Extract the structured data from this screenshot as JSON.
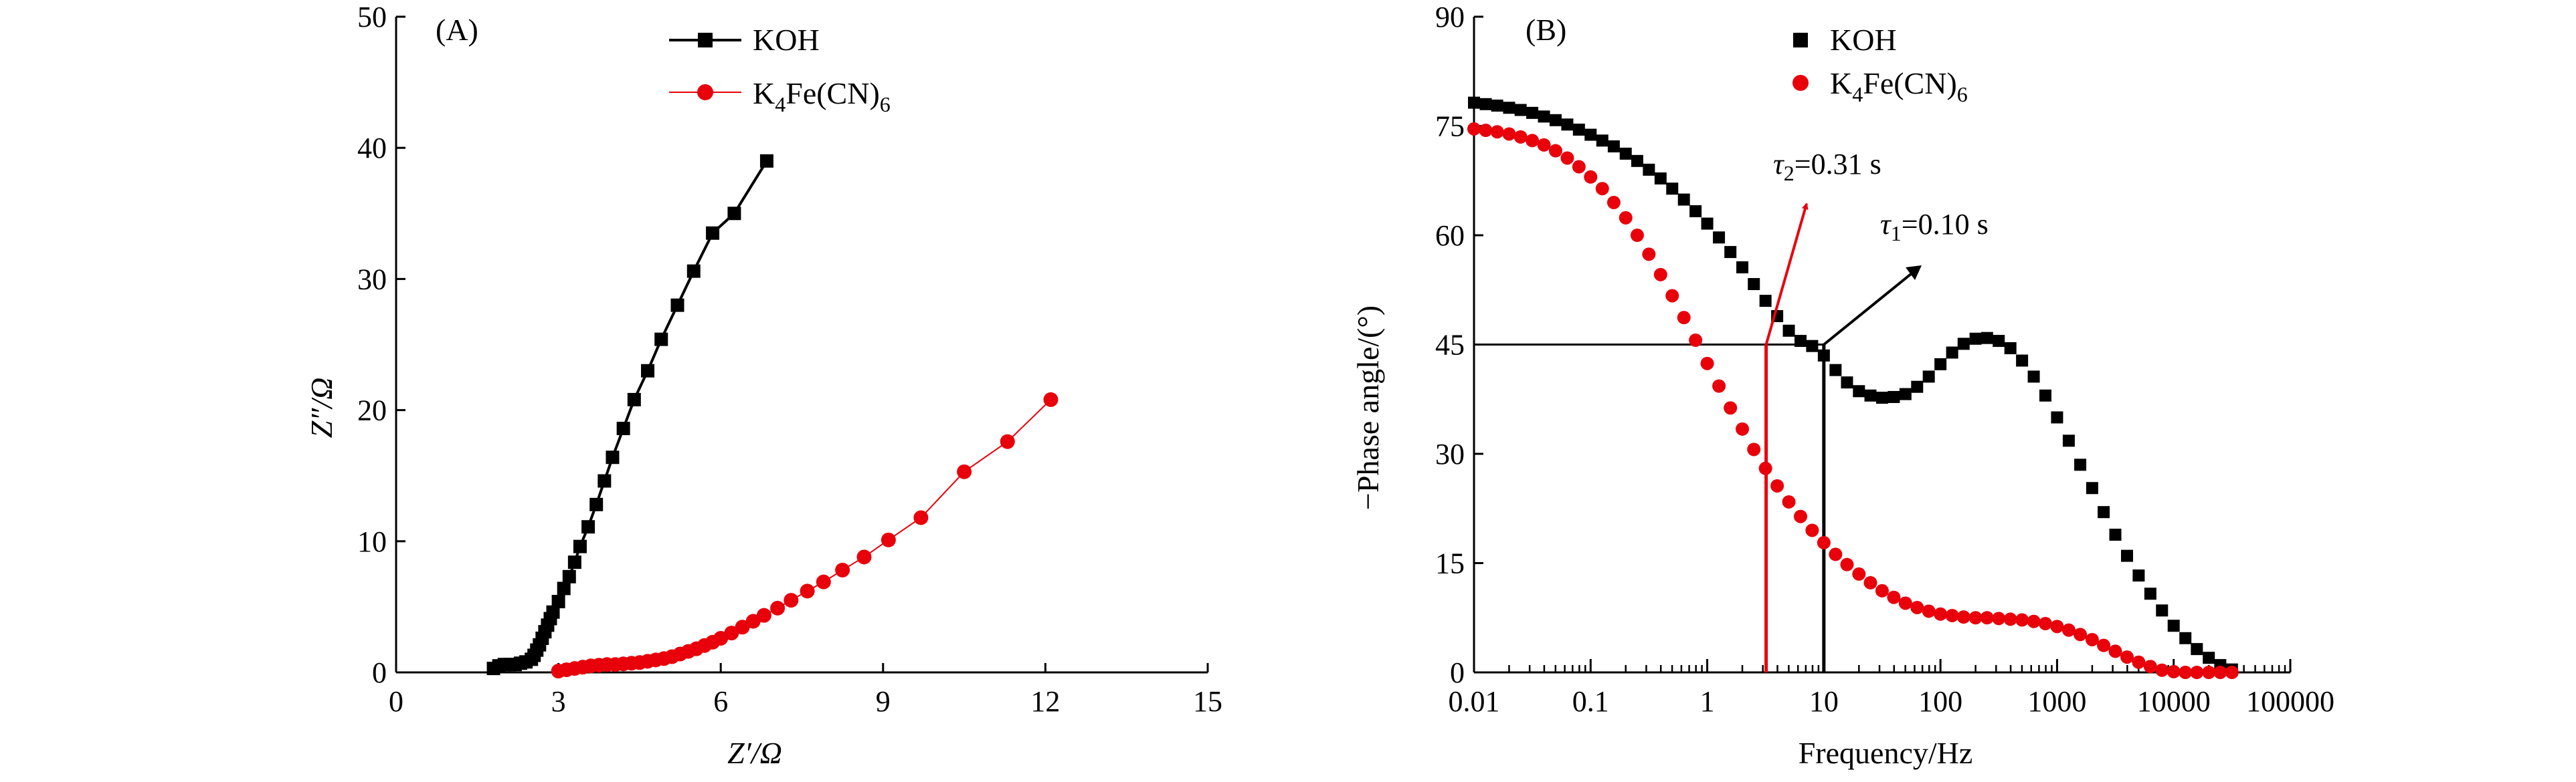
{
  "colors": {
    "koh": "#000000",
    "k4fecn6": "#e8000b",
    "axis": "#000000",
    "background": "#ffffff"
  },
  "chart_data": [
    {
      "type": "line",
      "panel_label": "(A)",
      "xlabel": "Z′/Ω",
      "ylabel": "Z″/Ω",
      "xlim": [
        0,
        15
      ],
      "ylim": [
        0,
        50
      ],
      "xticks": [
        0,
        3,
        6,
        9,
        12,
        15
      ],
      "yticks": [
        0,
        10,
        20,
        30,
        40,
        50
      ],
      "legend_placement": "top-center",
      "series": [
        {
          "name": "KOH",
          "marker": "square",
          "x": [
            1.8,
            1.9,
            2.0,
            2.1,
            2.2,
            2.3,
            2.4,
            2.5,
            2.55,
            2.6,
            2.65,
            2.7,
            2.75,
            2.8,
            2.85,
            2.9,
            3.0,
            3.1,
            3.2,
            3.3,
            3.4,
            3.55,
            3.7,
            3.85,
            4.0,
            4.2,
            4.4,
            4.65,
            4.9,
            5.2,
            5.5,
            5.85,
            6.25,
            6.85
          ],
          "y": [
            0.3,
            0.5,
            0.6,
            0.6,
            0.6,
            0.7,
            0.8,
            1.0,
            1.3,
            1.7,
            2.1,
            2.6,
            3.1,
            3.6,
            4.1,
            4.6,
            5.4,
            6.4,
            7.3,
            8.4,
            9.6,
            11.1,
            12.8,
            14.6,
            16.4,
            18.6,
            20.8,
            23.0,
            25.4,
            28.0,
            30.6,
            33.5,
            35.0,
            39.0
          ]
        },
        {
          "name": "K4Fe(CN)6",
          "marker": "circle",
          "x": [
            3.0,
            3.15,
            3.3,
            3.45,
            3.6,
            3.75,
            3.9,
            4.05,
            4.2,
            4.35,
            4.5,
            4.65,
            4.8,
            4.95,
            5.1,
            5.25,
            5.4,
            5.55,
            5.7,
            5.85,
            6.0,
            6.2,
            6.4,
            6.6,
            6.8,
            7.05,
            7.3,
            7.6,
            7.9,
            8.25,
            8.65,
            9.1,
            9.7,
            10.5,
            11.3,
            12.1
          ],
          "y": [
            0.1,
            0.2,
            0.3,
            0.4,
            0.5,
            0.55,
            0.6,
            0.6,
            0.65,
            0.7,
            0.75,
            0.85,
            0.95,
            1.05,
            1.2,
            1.4,
            1.6,
            1.8,
            2.05,
            2.3,
            2.6,
            3.0,
            3.45,
            3.9,
            4.35,
            4.9,
            5.5,
            6.2,
            6.9,
            7.8,
            8.8,
            10.1,
            11.8,
            15.3,
            17.6,
            20.8
          ]
        }
      ]
    },
    {
      "type": "scatter",
      "panel_label": "(B)",
      "xlabel": "Frequency/Hz",
      "ylabel": "−Phase angle/(°)",
      "xscale": "log",
      "xlim": [
        0.01,
        100000
      ],
      "ylim": [
        0,
        90
      ],
      "xticks": [
        "0.01",
        "0.1",
        "1",
        "10",
        "100",
        "1000",
        "10000",
        "100000"
      ],
      "yticks": [
        0,
        15,
        30,
        45,
        60,
        75,
        90
      ],
      "legend_placement": "top-center",
      "series": [
        {
          "name": "KOH",
          "marker": "square",
          "x": [
            0.01,
            0.0126,
            0.0158,
            0.02,
            0.0251,
            0.0316,
            0.0398,
            0.0501,
            0.0631,
            0.0794,
            0.1,
            0.126,
            0.158,
            0.2,
            0.251,
            0.316,
            0.398,
            0.501,
            0.631,
            0.794,
            1,
            1.26,
            1.58,
            2,
            2.51,
            3.16,
            3.98,
            5.01,
            6.31,
            7.94,
            10,
            12.6,
            15.8,
            20,
            25.1,
            31.6,
            39.8,
            50.1,
            63.1,
            79.4,
            100,
            126,
            158,
            200,
            251,
            316,
            398,
            501,
            631,
            794,
            1000,
            1260,
            1580,
            2000,
            2510,
            3160,
            3980,
            5010,
            6310,
            7940,
            10000,
            12600,
            15800,
            20000,
            25100,
            31600
          ],
          "y": [
            78.2,
            78.0,
            77.8,
            77.5,
            77.2,
            76.8,
            76.3,
            75.8,
            75.2,
            74.5,
            73.8,
            73.0,
            72.2,
            71.2,
            70.2,
            69.0,
            67.8,
            66.4,
            64.9,
            63.3,
            61.6,
            59.7,
            57.7,
            55.6,
            53.3,
            51.0,
            48.9,
            46.9,
            45.5,
            44.8,
            43.5,
            41.5,
            39.8,
            38.6,
            38.0,
            37.7,
            37.8,
            38.2,
            39.2,
            40.6,
            42.3,
            43.9,
            45.1,
            45.8,
            45.9,
            45.5,
            44.5,
            42.8,
            40.6,
            38.0,
            35.0,
            31.8,
            28.5,
            25.3,
            22.0,
            18.9,
            16.0,
            13.3,
            10.8,
            8.5,
            6.4,
            4.7,
            3.2,
            2.0,
            1.0,
            0.4
          ]
        },
        {
          "name": "K4Fe(CN)6",
          "marker": "circle",
          "x": [
            0.01,
            0.0126,
            0.0158,
            0.02,
            0.0251,
            0.0316,
            0.0398,
            0.0501,
            0.0631,
            0.0794,
            0.1,
            0.126,
            0.158,
            0.2,
            0.251,
            0.316,
            0.398,
            0.501,
            0.631,
            0.794,
            1,
            1.26,
            1.58,
            2,
            2.51,
            3.16,
            3.98,
            5.01,
            6.31,
            7.94,
            10,
            12.6,
            15.8,
            20,
            25.1,
            31.6,
            39.8,
            50.1,
            63.1,
            79.4,
            100,
            126,
            158,
            200,
            251,
            316,
            398,
            501,
            631,
            794,
            1000,
            1260,
            1580,
            2000,
            2510,
            3160,
            3980,
            5010,
            6310,
            7940,
            10000,
            12600,
            15800,
            20000,
            25100,
            31600
          ],
          "y": [
            74.6,
            74.4,
            74.2,
            73.9,
            73.5,
            73.0,
            72.4,
            71.6,
            70.6,
            69.4,
            68.0,
            66.4,
            64.5,
            62.4,
            60.0,
            57.4,
            54.6,
            51.7,
            48.7,
            45.6,
            42.4,
            39.3,
            36.3,
            33.4,
            30.6,
            28.0,
            25.6,
            23.4,
            21.4,
            19.5,
            17.8,
            16.2,
            14.8,
            13.5,
            12.3,
            11.2,
            10.3,
            9.5,
            8.9,
            8.4,
            8.0,
            7.8,
            7.6,
            7.5,
            7.5,
            7.4,
            7.3,
            7.2,
            7.0,
            6.7,
            6.3,
            5.8,
            5.2,
            4.5,
            3.7,
            2.9,
            2.1,
            1.4,
            0.8,
            0.3,
            0.1,
            0.0,
            0.0,
            0.0,
            0.0,
            0.0
          ]
        }
      ],
      "annotations": [
        {
          "text": "τ2=0.31 s",
          "point_x": 3.2,
          "point_y": 45,
          "color": "#e8000b"
        },
        {
          "text": "τ1=0.10 s",
          "point_x": 10,
          "point_y": 45,
          "color": "#000000"
        }
      ]
    }
  ]
}
